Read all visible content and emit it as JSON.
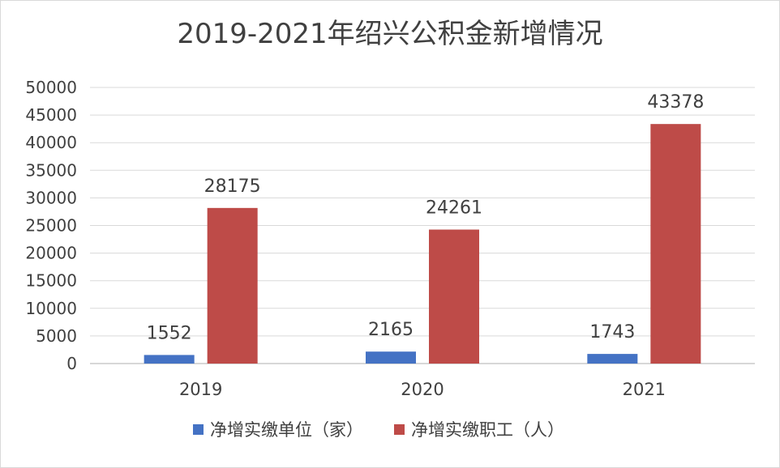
{
  "chart_data": {
    "type": "bar",
    "title": "2019-2021年绍兴公积金新增情况",
    "categories": [
      "2019",
      "2020",
      "2021"
    ],
    "series": [
      {
        "name": "净增实缴单位（家）",
        "values": [
          1552,
          2165,
          1743
        ],
        "color": "#4472c4"
      },
      {
        "name": "净增实缴职工（人）",
        "values": [
          28175,
          24261,
          43378
        ],
        "color": "#be4b48"
      }
    ],
    "ylim": [
      0,
      50000
    ],
    "yticks": [
      0,
      5000,
      10000,
      15000,
      20000,
      25000,
      30000,
      35000,
      40000,
      45000,
      50000
    ],
    "ytick_labels": [
      "0",
      "5000",
      "10000",
      "15000",
      "20000",
      "25000",
      "30000",
      "35000",
      "40000",
      "45000",
      "50000"
    ],
    "xlabel": "",
    "ylabel": "",
    "grid": true,
    "legend_position": "bottom",
    "data_labels": true
  }
}
